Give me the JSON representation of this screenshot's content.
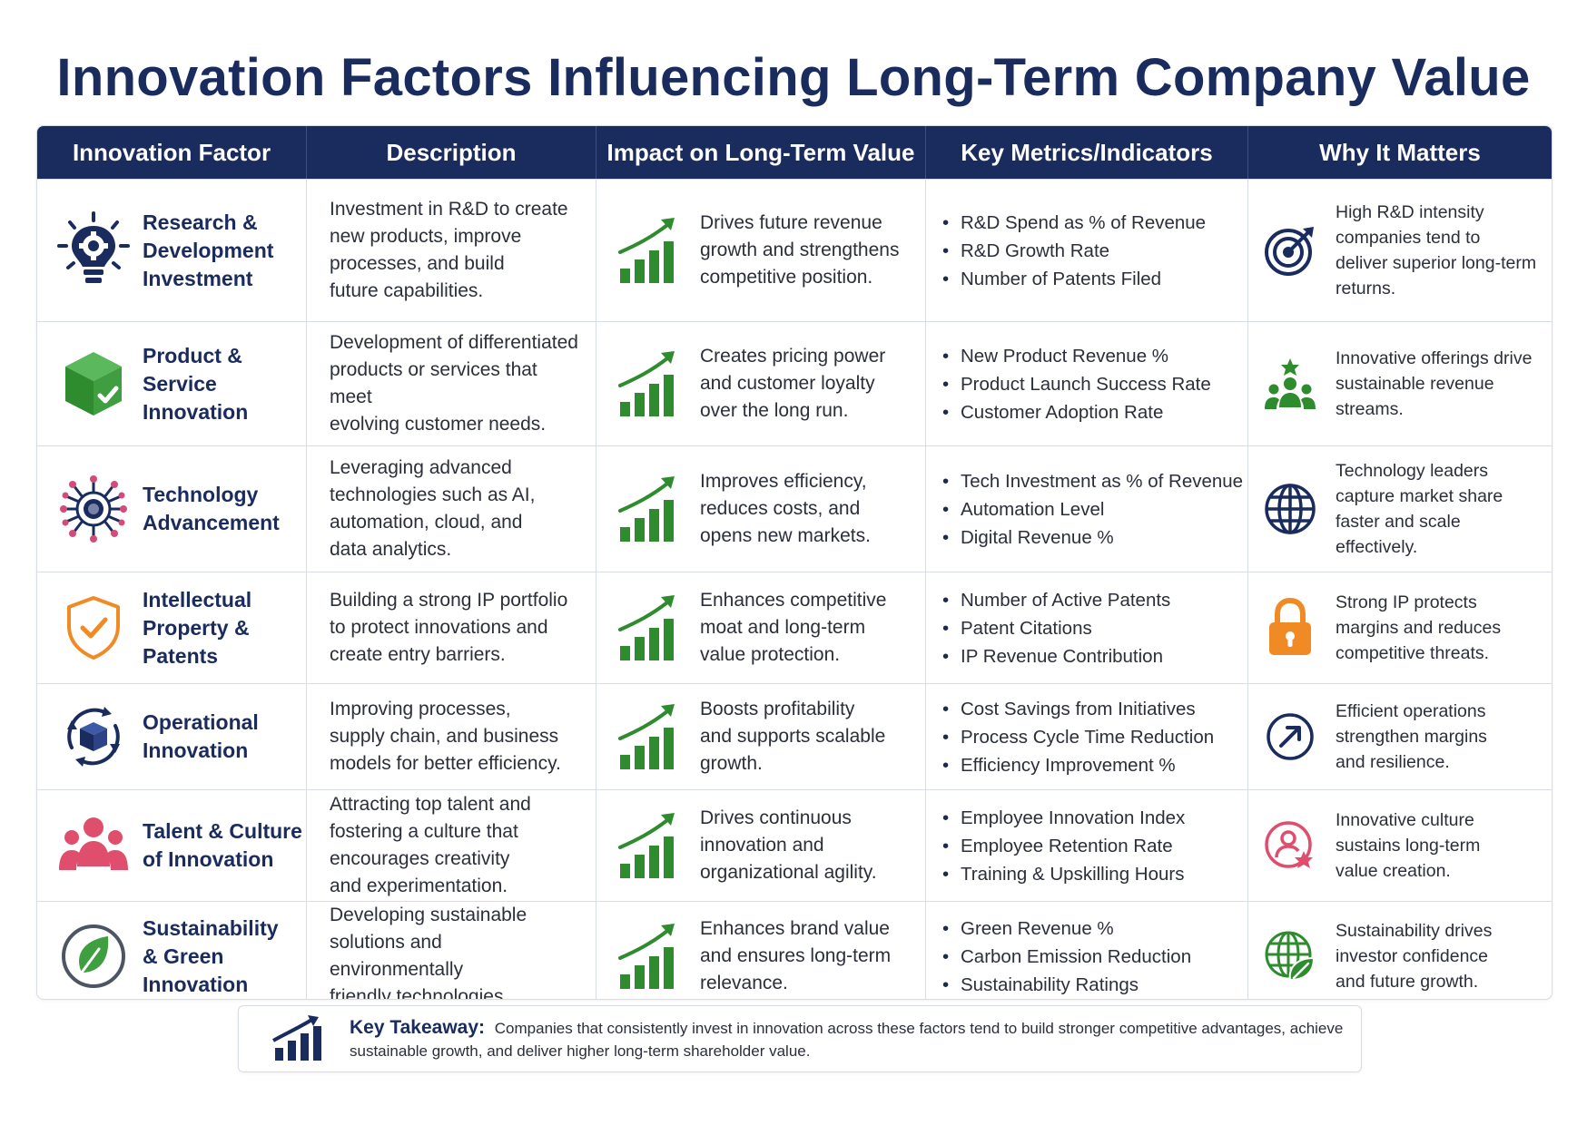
{
  "title": "Innovation Factors Influencing Long-Term Company Value",
  "headers": [
    "Innovation Factor",
    "Description",
    "Impact on Long-Term Value",
    "Key Metrics/Indicators",
    "Why It Matters"
  ],
  "colors": {
    "navy": "#1a2b5e",
    "green": "#2e8b2e",
    "orange": "#f08a24",
    "pink": "#e04e6e"
  },
  "rows": [
    {
      "factor": "Research &\nDevelopment\nInvestment",
      "factor_icon": "lightbulb-gear-icon",
      "description": "Investment in R&D to create\nnew products, improve\nprocesses, and build\nfuture capabilities.",
      "impact": "Drives future revenue\ngrowth and strengthens\ncompetitive position.",
      "metrics": [
        "R&D Spend as % of Revenue",
        "R&D Growth Rate",
        "Number of Patents Filed"
      ],
      "why": "High R&D intensity\ncompanies tend to\ndeliver superior long-term\nreturns.",
      "why_icon": "target-icon"
    },
    {
      "factor": "Product & Service\nInnovation",
      "factor_icon": "cube-check-icon",
      "description": "Development of differentiated\nproducts or services that meet\nevolving customer needs.",
      "impact": "Creates pricing power\nand customer loyalty\nover the long run.",
      "metrics": [
        "New Product Revenue %",
        "Product Launch Success Rate",
        "Customer Adoption Rate"
      ],
      "why": "Innovative offerings drive\nsustainable revenue\nstreams.",
      "why_icon": "people-star-icon"
    },
    {
      "factor": "Technology\nAdvancement",
      "factor_icon": "chip-icon",
      "description": "Leveraging advanced\ntechnologies such as AI,\nautomation, cloud, and\ndata analytics.",
      "impact": "Improves efficiency,\nreduces costs, and\nopens new markets.",
      "metrics": [
        "Tech Investment as % of Revenue",
        "Automation Level",
        "Digital Revenue %"
      ],
      "why": "Technology leaders\ncapture market share\nfaster and scale\neffectively.",
      "why_icon": "globe-icon"
    },
    {
      "factor": "Intellectual\nProperty &\nPatents",
      "factor_icon": "shield-check-icon",
      "description": "Building a strong IP portfolio\nto protect innovations and\ncreate entry barriers.",
      "impact": "Enhances competitive\nmoat and long-term\nvalue protection.",
      "metrics": [
        "Number of Active Patents",
        "Patent Citations",
        "IP Revenue Contribution"
      ],
      "why": "Strong IP protects\nmargins and reduces\ncompetitive threats.",
      "why_icon": "padlock-icon"
    },
    {
      "factor": "Operational\nInnovation",
      "factor_icon": "cycle-box-icon",
      "description": "Improving processes,\nsupply chain, and business\nmodels for better efficiency.",
      "impact": "Boosts profitability\nand supports scalable\ngrowth.",
      "metrics": [
        "Cost Savings from Initiatives",
        "Process Cycle Time Reduction",
        "Efficiency Improvement %"
      ],
      "why": "Efficient operations\nstrengthen margins\nand resilience.",
      "why_icon": "arrow-up-right-icon"
    },
    {
      "factor": "Talent & Culture\nof Innovation",
      "factor_icon": "team-icon",
      "description": "Attracting top talent and\nfostering a culture that\nencourages creativity\nand experimentation.",
      "impact": "Drives continuous\ninnovation and\norganizational agility.",
      "metrics": [
        "Employee Innovation Index",
        "Employee Retention Rate",
        "Training & Upskilling Hours"
      ],
      "why": "Innovative culture\nsustains long-term\nvalue creation.",
      "why_icon": "person-star-icon"
    },
    {
      "factor": "Sustainability\n& Green\nInnovation",
      "factor_icon": "leaf-icon",
      "description": "Developing sustainable\nsolutions and environmentally\nfriendly technologies.",
      "impact": "Enhances brand value\nand ensures long-term\nrelevance.",
      "metrics": [
        "Green Revenue %",
        "Carbon Emission Reduction",
        "Sustainability Ratings"
      ],
      "why": "Sustainability drives\ninvestor confidence\nand future growth.",
      "why_icon": "globe-leaf-icon"
    }
  ],
  "takeaway": {
    "label": "Key Takeaway:",
    "text": "Companies that consistently invest in innovation across these factors tend to build stronger competitive advantages, achieve sustainable growth, and deliver higher long-term shareholder value.",
    "icon": "bar-chart-arrow-icon"
  }
}
